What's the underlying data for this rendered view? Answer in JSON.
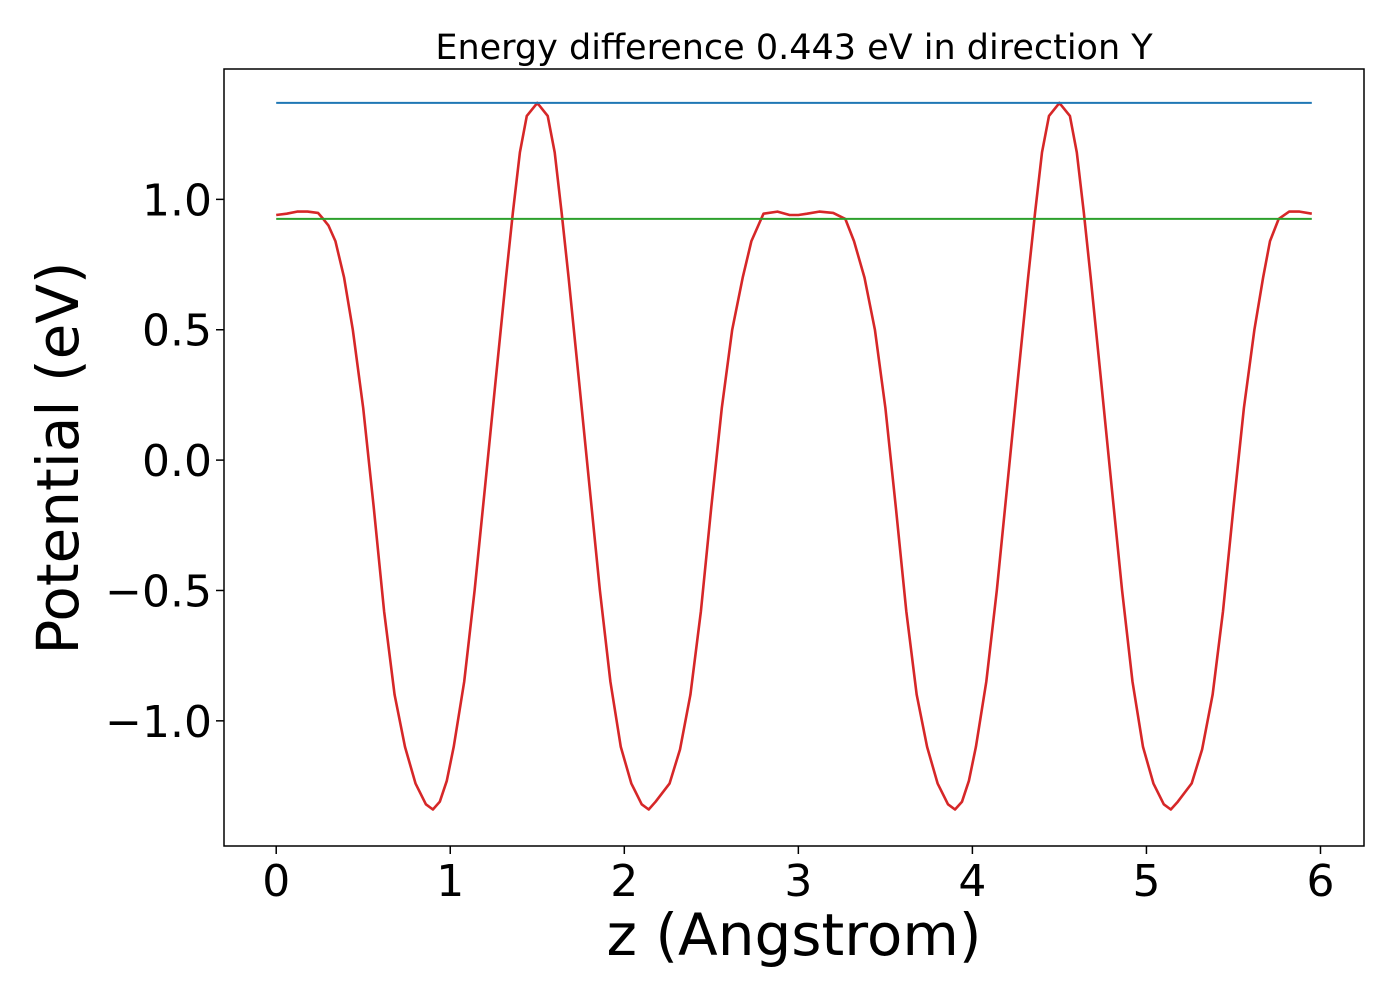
{
  "chart_data": {
    "type": "line",
    "title": "Energy difference 0.443 eV in direction Y",
    "xlabel": "z (Angstrom)",
    "ylabel": "Potential (eV)",
    "xlim": [
      -0.3,
      6.25
    ],
    "ylim": [
      -1.48,
      1.5
    ],
    "xticks": [
      0,
      1,
      2,
      3,
      4,
      5,
      6
    ],
    "xtick_labels": [
      "0",
      "1",
      "2",
      "3",
      "4",
      "5",
      "6"
    ],
    "yticks": [
      -1.0,
      -0.5,
      0.0,
      0.5,
      1.0
    ],
    "ytick_labels": [
      "−1.0",
      "−0.5",
      "0.0",
      "0.5",
      "1.0"
    ],
    "grid": false,
    "legend": "none",
    "series": [
      {
        "color": "#d62728",
        "x": [
          0.0,
          0.06,
          0.12,
          0.18,
          0.24,
          0.27,
          0.3,
          0.34,
          0.39,
          0.44,
          0.5,
          0.56,
          0.62,
          0.68,
          0.74,
          0.8,
          0.86,
          0.9,
          0.94,
          0.98,
          1.02,
          1.08,
          1.14,
          1.2,
          1.26,
          1.32,
          1.36,
          1.4,
          1.44,
          1.5,
          1.56,
          1.6,
          1.64,
          1.68,
          1.74,
          1.8,
          1.86,
          1.92,
          1.98,
          2.04,
          2.1,
          2.14,
          2.18,
          2.26,
          2.32,
          2.38,
          2.44,
          2.5,
          2.56,
          2.62,
          2.68,
          2.73,
          2.8,
          2.88,
          2.95,
          3.0,
          3.05,
          3.12,
          3.2,
          3.27,
          3.32,
          3.38,
          3.44,
          3.5,
          3.56,
          3.62,
          3.68,
          3.74,
          3.8,
          3.86,
          3.9,
          3.94,
          3.98,
          4.02,
          4.08,
          4.14,
          4.2,
          4.26,
          4.32,
          4.36,
          4.4,
          4.44,
          4.5,
          4.56,
          4.6,
          4.64,
          4.68,
          4.74,
          4.8,
          4.86,
          4.92,
          4.98,
          5.04,
          5.1,
          5.14,
          5.18,
          5.26,
          5.32,
          5.38,
          5.44,
          5.5,
          5.56,
          5.62,
          5.67,
          5.71,
          5.76,
          5.82,
          5.88,
          5.95
        ],
        "y": [
          0.94,
          0.945,
          0.953,
          0.953,
          0.948,
          0.925,
          0.9,
          0.84,
          0.7,
          0.5,
          0.2,
          -0.18,
          -0.58,
          -0.9,
          -1.1,
          -1.24,
          -1.32,
          -1.34,
          -1.31,
          -1.23,
          -1.1,
          -0.85,
          -0.5,
          -0.1,
          0.3,
          0.7,
          0.95,
          1.18,
          1.32,
          1.37,
          1.32,
          1.18,
          0.95,
          0.7,
          0.3,
          -0.1,
          -0.5,
          -0.85,
          -1.1,
          -1.24,
          -1.32,
          -1.34,
          -1.31,
          -1.24,
          -1.11,
          -0.9,
          -0.58,
          -0.18,
          0.2,
          0.5,
          0.7,
          0.84,
          0.945,
          0.953,
          0.94,
          0.94,
          0.945,
          0.953,
          0.948,
          0.925,
          0.84,
          0.7,
          0.5,
          0.2,
          -0.18,
          -0.58,
          -0.9,
          -1.1,
          -1.24,
          -1.32,
          -1.34,
          -1.31,
          -1.23,
          -1.1,
          -0.85,
          -0.5,
          -0.1,
          0.3,
          0.7,
          0.95,
          1.18,
          1.32,
          1.37,
          1.32,
          1.18,
          0.95,
          0.7,
          0.3,
          -0.1,
          -0.5,
          -0.85,
          -1.1,
          -1.24,
          -1.32,
          -1.34,
          -1.31,
          -1.24,
          -1.11,
          -0.9,
          -0.58,
          -0.18,
          0.2,
          0.5,
          0.7,
          0.84,
          0.925,
          0.953,
          0.953,
          0.945
        ]
      },
      {
        "color": "#1f77b4",
        "x": [
          0.0,
          5.95
        ],
        "y": [
          1.37,
          1.37
        ]
      },
      {
        "color": "#2ca02c",
        "x": [
          0.0,
          5.95
        ],
        "y": [
          0.925,
          0.925
        ]
      }
    ]
  }
}
